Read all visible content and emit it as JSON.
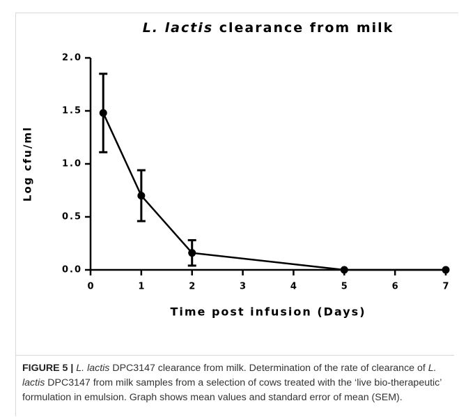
{
  "chart_data": {
    "type": "line",
    "title": {
      "italic": "L. lactis",
      "text": "clearance from milk"
    },
    "xlabel": "Time post infusion (Days)",
    "ylabel": "Log cfu/ml",
    "x": [
      0.25,
      1,
      2,
      5,
      7
    ],
    "values": [
      1.48,
      0.7,
      0.16,
      0,
      0
    ],
    "errors": [
      0.37,
      0.24,
      0.12,
      0,
      0
    ],
    "color": "#000000",
    "xlim": [
      0,
      7
    ],
    "xticks": [
      0,
      1,
      2,
      3,
      4,
      5,
      6,
      7
    ],
    "ylim": [
      0,
      2
    ],
    "yticks": [
      {
        "value": 0,
        "label": "0.0"
      },
      0.5,
      {
        "value": 1,
        "label": "1.0"
      },
      1.5,
      {
        "value": 2,
        "label": "2.0"
      }
    ]
  },
  "caption": [
    {
      "text": "FIGURE 5 | ",
      "style": "bold"
    },
    {
      "text": "L. lactis",
      "style": "italic"
    },
    {
      "text": " DPC3147 clearance from milk. Determination of the rate of clearance of ",
      "style": "normal"
    },
    {
      "text": "L. lactis",
      "style": "italic"
    },
    {
      "text": " DPC3147 from milk samples from a selection of cows treated with the ‘live bio-therapeutic’ formulation in emulsion. Graph shows mean values and standard error of mean (SEM).",
      "style": "normal"
    }
  ]
}
